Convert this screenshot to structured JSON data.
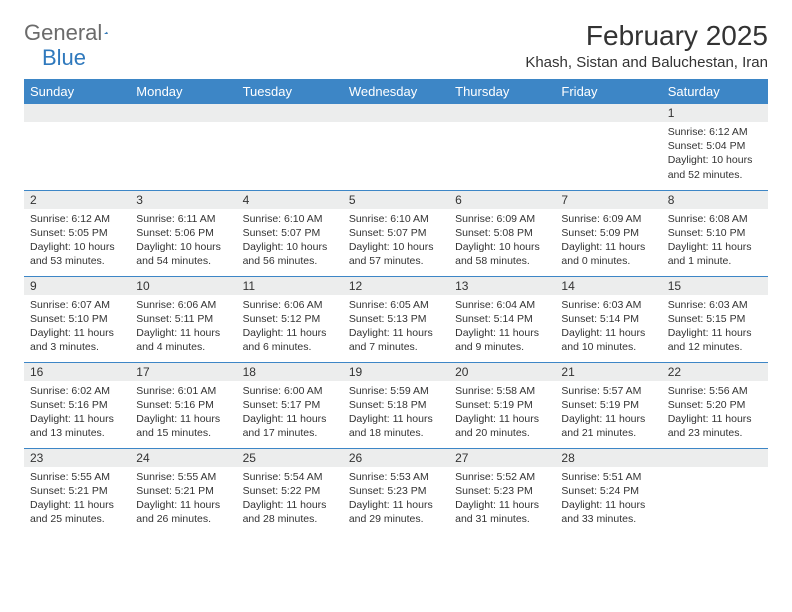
{
  "logo": {
    "text_gray": "General",
    "text_blue": "Blue"
  },
  "title": "February 2025",
  "location": "Khash, Sistan and Baluchestan, Iran",
  "colors": {
    "header_bg": "#3d86c6",
    "header_fg": "#ffffff",
    "daynum_bg": "#eceded",
    "border": "#3d86c6",
    "logo_gray": "#6b6b6b",
    "logo_blue": "#2f79bd",
    "text": "#333333"
  },
  "weekdays": [
    "Sunday",
    "Monday",
    "Tuesday",
    "Wednesday",
    "Thursday",
    "Friday",
    "Saturday"
  ],
  "weeks": [
    [
      {
        "n": "",
        "lines": []
      },
      {
        "n": "",
        "lines": []
      },
      {
        "n": "",
        "lines": []
      },
      {
        "n": "",
        "lines": []
      },
      {
        "n": "",
        "lines": []
      },
      {
        "n": "",
        "lines": []
      },
      {
        "n": "1",
        "lines": [
          "Sunrise: 6:12 AM",
          "Sunset: 5:04 PM",
          "Daylight: 10 hours and 52 minutes."
        ]
      }
    ],
    [
      {
        "n": "2",
        "lines": [
          "Sunrise: 6:12 AM",
          "Sunset: 5:05 PM",
          "Daylight: 10 hours and 53 minutes."
        ]
      },
      {
        "n": "3",
        "lines": [
          "Sunrise: 6:11 AM",
          "Sunset: 5:06 PM",
          "Daylight: 10 hours and 54 minutes."
        ]
      },
      {
        "n": "4",
        "lines": [
          "Sunrise: 6:10 AM",
          "Sunset: 5:07 PM",
          "Daylight: 10 hours and 56 minutes."
        ]
      },
      {
        "n": "5",
        "lines": [
          "Sunrise: 6:10 AM",
          "Sunset: 5:07 PM",
          "Daylight: 10 hours and 57 minutes."
        ]
      },
      {
        "n": "6",
        "lines": [
          "Sunrise: 6:09 AM",
          "Sunset: 5:08 PM",
          "Daylight: 10 hours and 58 minutes."
        ]
      },
      {
        "n": "7",
        "lines": [
          "Sunrise: 6:09 AM",
          "Sunset: 5:09 PM",
          "Daylight: 11 hours and 0 minutes."
        ]
      },
      {
        "n": "8",
        "lines": [
          "Sunrise: 6:08 AM",
          "Sunset: 5:10 PM",
          "Daylight: 11 hours and 1 minute."
        ]
      }
    ],
    [
      {
        "n": "9",
        "lines": [
          "Sunrise: 6:07 AM",
          "Sunset: 5:10 PM",
          "Daylight: 11 hours and 3 minutes."
        ]
      },
      {
        "n": "10",
        "lines": [
          "Sunrise: 6:06 AM",
          "Sunset: 5:11 PM",
          "Daylight: 11 hours and 4 minutes."
        ]
      },
      {
        "n": "11",
        "lines": [
          "Sunrise: 6:06 AM",
          "Sunset: 5:12 PM",
          "Daylight: 11 hours and 6 minutes."
        ]
      },
      {
        "n": "12",
        "lines": [
          "Sunrise: 6:05 AM",
          "Sunset: 5:13 PM",
          "Daylight: 11 hours and 7 minutes."
        ]
      },
      {
        "n": "13",
        "lines": [
          "Sunrise: 6:04 AM",
          "Sunset: 5:14 PM",
          "Daylight: 11 hours and 9 minutes."
        ]
      },
      {
        "n": "14",
        "lines": [
          "Sunrise: 6:03 AM",
          "Sunset: 5:14 PM",
          "Daylight: 11 hours and 10 minutes."
        ]
      },
      {
        "n": "15",
        "lines": [
          "Sunrise: 6:03 AM",
          "Sunset: 5:15 PM",
          "Daylight: 11 hours and 12 minutes."
        ]
      }
    ],
    [
      {
        "n": "16",
        "lines": [
          "Sunrise: 6:02 AM",
          "Sunset: 5:16 PM",
          "Daylight: 11 hours and 13 minutes."
        ]
      },
      {
        "n": "17",
        "lines": [
          "Sunrise: 6:01 AM",
          "Sunset: 5:16 PM",
          "Daylight: 11 hours and 15 minutes."
        ]
      },
      {
        "n": "18",
        "lines": [
          "Sunrise: 6:00 AM",
          "Sunset: 5:17 PM",
          "Daylight: 11 hours and 17 minutes."
        ]
      },
      {
        "n": "19",
        "lines": [
          "Sunrise: 5:59 AM",
          "Sunset: 5:18 PM",
          "Daylight: 11 hours and 18 minutes."
        ]
      },
      {
        "n": "20",
        "lines": [
          "Sunrise: 5:58 AM",
          "Sunset: 5:19 PM",
          "Daylight: 11 hours and 20 minutes."
        ]
      },
      {
        "n": "21",
        "lines": [
          "Sunrise: 5:57 AM",
          "Sunset: 5:19 PM",
          "Daylight: 11 hours and 21 minutes."
        ]
      },
      {
        "n": "22",
        "lines": [
          "Sunrise: 5:56 AM",
          "Sunset: 5:20 PM",
          "Daylight: 11 hours and 23 minutes."
        ]
      }
    ],
    [
      {
        "n": "23",
        "lines": [
          "Sunrise: 5:55 AM",
          "Sunset: 5:21 PM",
          "Daylight: 11 hours and 25 minutes."
        ]
      },
      {
        "n": "24",
        "lines": [
          "Sunrise: 5:55 AM",
          "Sunset: 5:21 PM",
          "Daylight: 11 hours and 26 minutes."
        ]
      },
      {
        "n": "25",
        "lines": [
          "Sunrise: 5:54 AM",
          "Sunset: 5:22 PM",
          "Daylight: 11 hours and 28 minutes."
        ]
      },
      {
        "n": "26",
        "lines": [
          "Sunrise: 5:53 AM",
          "Sunset: 5:23 PM",
          "Daylight: 11 hours and 29 minutes."
        ]
      },
      {
        "n": "27",
        "lines": [
          "Sunrise: 5:52 AM",
          "Sunset: 5:23 PM",
          "Daylight: 11 hours and 31 minutes."
        ]
      },
      {
        "n": "28",
        "lines": [
          "Sunrise: 5:51 AM",
          "Sunset: 5:24 PM",
          "Daylight: 11 hours and 33 minutes."
        ]
      },
      {
        "n": "",
        "lines": []
      }
    ]
  ]
}
